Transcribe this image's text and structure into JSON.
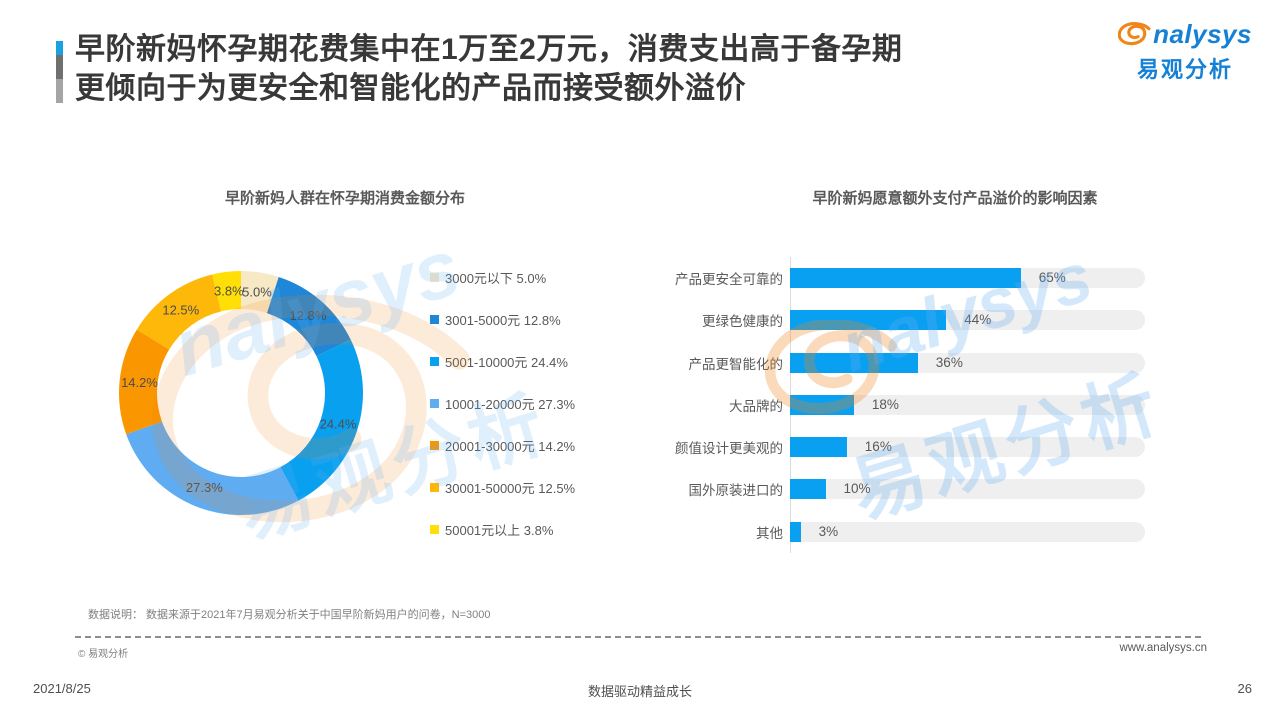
{
  "header": {
    "title_line1": "早阶新妈怀孕期花费集中在1万至2万元，消费支出高于备孕期",
    "title_line2": "更倾向于为更安全和智能化的产品而接受额外溢价",
    "logo": {
      "brand": "nalysys",
      "brand_cn": "易观分析"
    }
  },
  "chart_data": [
    {
      "type": "pie",
      "donut": true,
      "title": "早阶新妈人群在怀孕期消费金额分布",
      "labels": [
        "3000元以下",
        "3001-5000元",
        "5001-10000元",
        "10001-20000元",
        "20001-30000元",
        "30001-50000元",
        "50001元以上"
      ],
      "values": [
        5.0,
        12.8,
        24.4,
        27.3,
        14.2,
        12.5,
        3.8
      ],
      "colors": [
        "#F8E9C6",
        "#1E87D8",
        "#0AA0F0",
        "#5FACF2",
        "#FA9600",
        "#FDB80A",
        "#FFDF05"
      ],
      "start_angle": "top",
      "direction": "clockwise",
      "legend_position": "right",
      "label_format": "percent"
    },
    {
      "type": "bar",
      "orientation": "horizontal",
      "title": "早阶新妈愿意额外支付产品溢价的影响因素",
      "categories": [
        "产品更安全可靠的",
        "更绿色健康的",
        "产品更智能化的",
        "大品牌的",
        "颜值设计更美观的",
        "国外原装进口的",
        "其他"
      ],
      "values": [
        65,
        44,
        36,
        18,
        16,
        10,
        3
      ],
      "unit": "%",
      "xlim": [
        0,
        100
      ],
      "bar_color": "#0AA0F2",
      "track_color": "#EFEFEF",
      "grid": false,
      "legend_position": "none"
    }
  ],
  "watermark": {
    "text_en": "nalysys",
    "text_cn": "易观分析"
  },
  "footer": {
    "note": "数据说明： 数据来源于2021年7月易观分析关于中国早阶新妈用户的问卷，N=3000",
    "copyright": "© 易观分析",
    "website": "www.analysys.cn",
    "date": "2021/8/25",
    "slogan": "数据驱动精益成长",
    "page": "26"
  },
  "colors": {
    "accent_blue": "#1BA0E1",
    "brand_blue": "#1480D6",
    "brand_orange": "#F08519",
    "bar_blue": "#0AA0F2",
    "track_gray": "#EFEFEF",
    "text_gray": "#595959",
    "title_gray": "#383838"
  }
}
